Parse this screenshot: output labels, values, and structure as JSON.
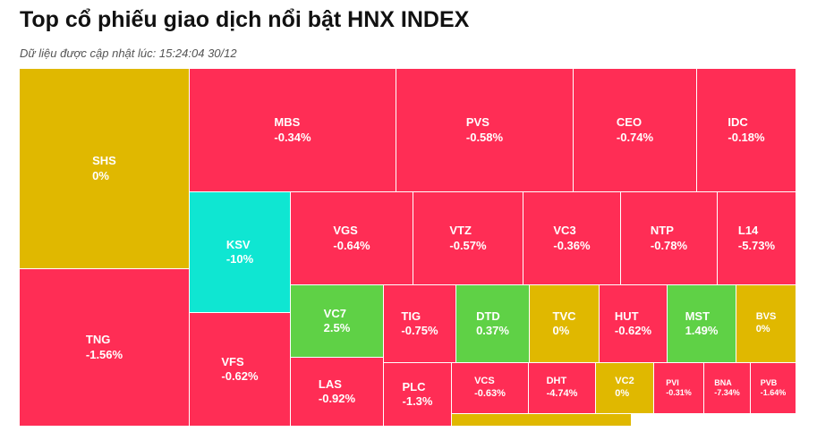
{
  "header": {
    "title": "Top cổ phiếu giao dịch nổi bật HNX INDEX",
    "subtitle": "Dữ liệu được cập nhật lúc: 15:24:04 30/12"
  },
  "colors": {
    "down": "#ff2d55",
    "unchanged": "#e0b800",
    "up": "#5fd146",
    "floor": "#0fe6d2",
    "text": "#ffffff"
  },
  "chart_data": {
    "type": "treemap",
    "title": "Top cổ phiếu giao dịch nổi bật HNX INDEX",
    "items": [
      {
        "ticker": "SHS",
        "change": "0%",
        "status": "unchanged"
      },
      {
        "ticker": "TNG",
        "change": "-1.56%",
        "status": "down"
      },
      {
        "ticker": "MBS",
        "change": "-0.34%",
        "status": "down"
      },
      {
        "ticker": "PVS",
        "change": "-0.58%",
        "status": "down"
      },
      {
        "ticker": "CEO",
        "change": "-0.74%",
        "status": "down"
      },
      {
        "ticker": "IDC",
        "change": "-0.18%",
        "status": "down"
      },
      {
        "ticker": "KSV",
        "change": "-10%",
        "status": "floor"
      },
      {
        "ticker": "VGS",
        "change": "-0.64%",
        "status": "down"
      },
      {
        "ticker": "VTZ",
        "change": "-0.57%",
        "status": "down"
      },
      {
        "ticker": "VC3",
        "change": "-0.36%",
        "status": "down"
      },
      {
        "ticker": "NTP",
        "change": "-0.78%",
        "status": "down"
      },
      {
        "ticker": "L14",
        "change": "-5.73%",
        "status": "down"
      },
      {
        "ticker": "VFS",
        "change": "-0.62%",
        "status": "down"
      },
      {
        "ticker": "VC7",
        "change": "2.5%",
        "status": "up"
      },
      {
        "ticker": "TIG",
        "change": "-0.75%",
        "status": "down"
      },
      {
        "ticker": "DTD",
        "change": "0.37%",
        "status": "up"
      },
      {
        "ticker": "TVC",
        "change": "0%",
        "status": "unchanged"
      },
      {
        "ticker": "HUT",
        "change": "-0.62%",
        "status": "down"
      },
      {
        "ticker": "MST",
        "change": "1.49%",
        "status": "up"
      },
      {
        "ticker": "BVS",
        "change": "0%",
        "status": "unchanged"
      },
      {
        "ticker": "LAS",
        "change": "-0.92%",
        "status": "down"
      },
      {
        "ticker": "PLC",
        "change": "-1.3%",
        "status": "down"
      },
      {
        "ticker": "VCS",
        "change": "-0.63%",
        "status": "down"
      },
      {
        "ticker": "DHT",
        "change": "-4.74%",
        "status": "down"
      },
      {
        "ticker": "VC2",
        "change": "0%",
        "status": "unchanged"
      },
      {
        "ticker": "PVI",
        "change": "-0.31%",
        "status": "down"
      },
      {
        "ticker": "BNA",
        "change": "-7.34%",
        "status": "down"
      },
      {
        "ticker": "PVB",
        "change": "-1.64%",
        "status": "down"
      },
      {
        "ticker": "",
        "change": "",
        "status": "unchanged"
      }
    ]
  }
}
